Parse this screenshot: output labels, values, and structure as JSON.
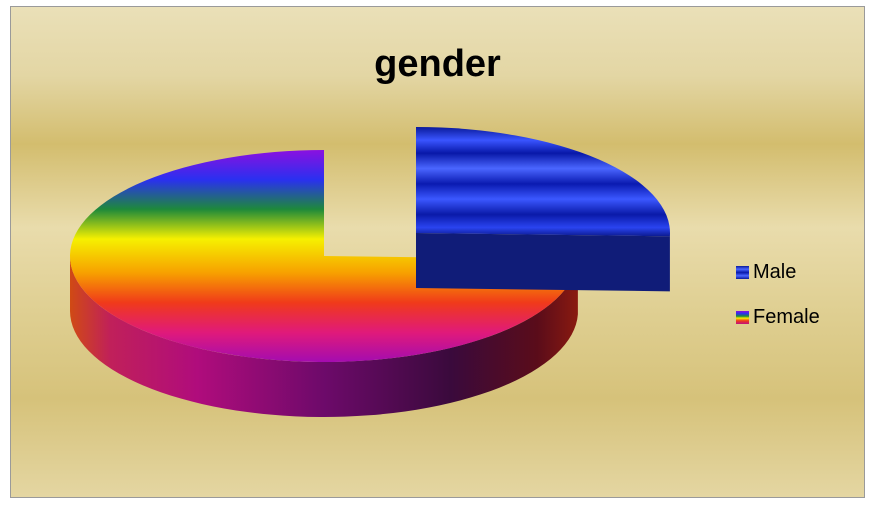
{
  "chart_data": {
    "type": "pie",
    "title": "gender",
    "three_d": true,
    "exploded_slice": "Male",
    "slices": [
      {
        "label": "Male",
        "value": 25.5,
        "color": "#1a2cd4"
      },
      {
        "label": "Female",
        "value": 74.5,
        "color": "rainbow"
      }
    ],
    "legend_position": "right"
  }
}
